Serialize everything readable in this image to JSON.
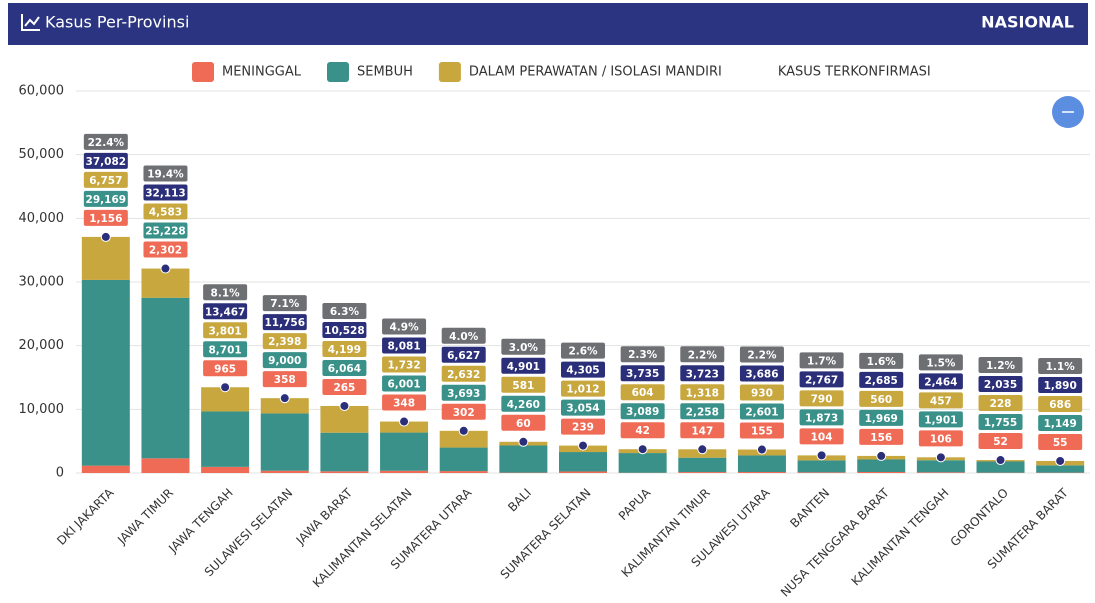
{
  "chart_data": {
    "type": "bar",
    "title": "Kasus Per-Provinsi",
    "scope": "NASIONAL",
    "categories": [
      "DKI JAKARTA",
      "JAWA TIMUR",
      "JAWA TENGAH",
      "SULAWESI SELATAN",
      "JAWA BARAT",
      "KALIMANTAN SELATAN",
      "SUMATERA UTARA",
      "BALI",
      "SUMATERA SELATAN",
      "PAPUA",
      "KALIMANTAN TIMUR",
      "SULAWESI UTARA",
      "BANTEN",
      "NUSA TENGGARA BARAT",
      "KALIMANTAN TENGAH",
      "GORONTALO",
      "SUMATERA BARAT"
    ],
    "series": [
      {
        "name": "MENINGGAL",
        "color": "#ef6b55",
        "values": [
          1156,
          2302,
          965,
          358,
          265,
          348,
          302,
          60,
          239,
          42,
          147,
          155,
          104,
          156,
          106,
          52,
          55
        ],
        "value_labels": [
          "1,156",
          "2,302",
          "965",
          "358",
          "265",
          "348",
          "302",
          "60",
          "239",
          "42",
          "147",
          "155",
          "104",
          "156",
          "106",
          "52",
          "55"
        ]
      },
      {
        "name": "SEMBUH",
        "color": "#3a9189",
        "values": [
          29169,
          25228,
          8701,
          9000,
          6064,
          6001,
          3693,
          4260,
          3054,
          3089,
          2258,
          2601,
          1873,
          1969,
          1901,
          1755,
          1149
        ],
        "value_labels": [
          "29,169",
          "25,228",
          "8,701",
          "9,000",
          "6,064",
          "6,001",
          "3,693",
          "4,260",
          "3,054",
          "3,089",
          "2,258",
          "2,601",
          "1,873",
          "1,969",
          "1,901",
          "1,755",
          "1,149"
        ]
      },
      {
        "name": "DALAM PERAWATAN / ISOLASI MANDIRI",
        "color": "#c8a83e",
        "values": [
          6757,
          4583,
          3801,
          2398,
          4199,
          1732,
          2632,
          581,
          1012,
          604,
          1318,
          930,
          790,
          560,
          457,
          228,
          686
        ],
        "value_labels": [
          "6,757",
          "4,583",
          "3,801",
          "2,398",
          "4,199",
          "1,732",
          "2,632",
          "581",
          "1,012",
          "604",
          "1,318",
          "930",
          "790",
          "560",
          "457",
          "228",
          "686"
        ]
      },
      {
        "name": "KASUS TERKONFIRMASI",
        "color": "#2b2e78",
        "values": [
          37082,
          32113,
          13467,
          11756,
          10528,
          8081,
          6627,
          4901,
          4305,
          3735,
          3723,
          3686,
          2767,
          2685,
          2464,
          2035,
          1890
        ],
        "value_labels": [
          "37,082",
          "32,113",
          "13,467",
          "11,756",
          "10,528",
          "8,081",
          "6,627",
          "4,901",
          "4,305",
          "3,735",
          "3,723",
          "3,686",
          "2,767",
          "2,685",
          "2,464",
          "2,035",
          "1,890"
        ]
      }
    ],
    "share": {
      "color": "#6e6f73",
      "values": [
        22.4,
        19.4,
        8.1,
        7.1,
        6.3,
        4.9,
        4.0,
        3.0,
        2.6,
        2.3,
        2.2,
        2.2,
        1.7,
        1.6,
        1.5,
        1.2,
        1.1
      ],
      "value_labels": [
        "22.4%",
        "19.4%",
        "8.1%",
        "7.1%",
        "6.3%",
        "4.9%",
        "4.0%",
        "3.0%",
        "2.6%",
        "2.3%",
        "2.2%",
        "2.2%",
        "1.7%",
        "1.6%",
        "1.5%",
        "1.2%",
        "1.1%"
      ]
    },
    "ylim": [
      0,
      60000
    ],
    "yticks": [
      0,
      {
        "value": 10000,
        "label": "10,000"
      },
      {
        "value": 20000,
        "label": "20,000"
      },
      {
        "value": 30000,
        "label": "30,000"
      },
      {
        "value": 40000,
        "label": "40,000"
      },
      {
        "value": 50000,
        "label": "50,000"
      },
      {
        "value": 60000,
        "label": "60,000"
      }
    ],
    "grid": true
  }
}
